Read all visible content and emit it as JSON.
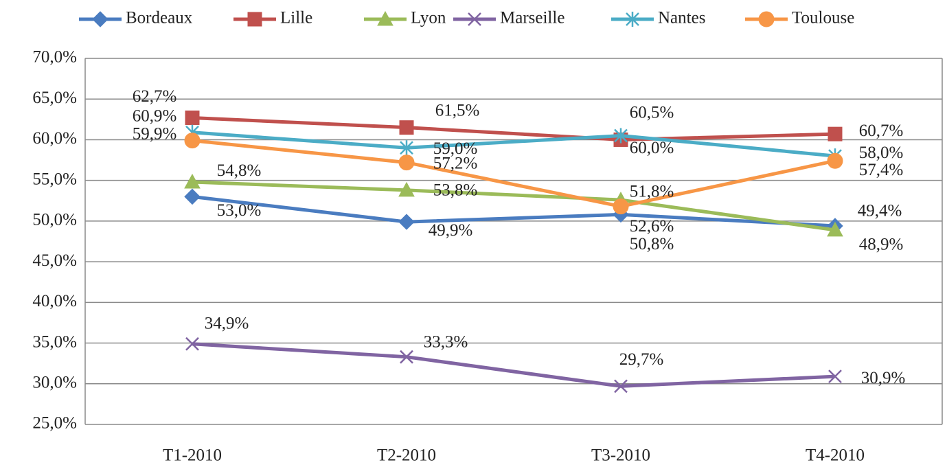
{
  "chart_data": {
    "type": "line",
    "categories": [
      "T1-2010",
      "T2-2010",
      "T3-2010",
      "T4-2010"
    ],
    "ylim": [
      25,
      70
    ],
    "yticks": [
      {
        "value": 25,
        "label": "25,0%"
      },
      {
        "value": 30,
        "label": "30,0%"
      },
      {
        "value": 35,
        "label": "35,0%"
      },
      {
        "value": 40,
        "label": "40,0%"
      },
      {
        "value": 45,
        "label": "45,0%"
      },
      {
        "value": 50,
        "label": "50,0%"
      },
      {
        "value": 55,
        "label": "55,0%"
      },
      {
        "value": 60,
        "label": "60,0%"
      },
      {
        "value": 65,
        "label": "65,0%"
      },
      {
        "value": 70,
        "label": "70,0%"
      }
    ],
    "grid": true,
    "legend": "top",
    "series": [
      {
        "name": "Bordeaux",
        "color": "#4a7cc0",
        "marker": "diamond",
        "values": [
          53.0,
          49.9,
          50.8,
          49.4
        ],
        "value_labels": [
          "53,0%",
          "49,9%",
          "50,8%",
          "49,4%"
        ]
      },
      {
        "name": "Lille",
        "color": "#c0504d",
        "marker": "square",
        "values": [
          62.7,
          61.5,
          60.0,
          60.7
        ],
        "value_labels": [
          "62,7%",
          "61,5%",
          "60,0%",
          "60,7%"
        ]
      },
      {
        "name": "Lyon",
        "color": "#9bbb59",
        "marker": "triangle",
        "values": [
          54.8,
          53.8,
          52.6,
          48.9
        ],
        "value_labels": [
          "54,8%",
          "53,8%",
          "52,6%",
          "48,9%"
        ]
      },
      {
        "name": "Marseille",
        "color": "#8064a2",
        "marker": "x",
        "values": [
          34.9,
          33.3,
          29.7,
          30.9
        ],
        "value_labels": [
          "34,9%",
          "33,3%",
          "29,7%",
          "30,9%"
        ]
      },
      {
        "name": "Nantes",
        "color": "#4bacc6",
        "marker": "asterisk",
        "values": [
          60.9,
          59.0,
          60.5,
          58.0
        ],
        "value_labels": [
          "60,9%",
          "59,0%",
          "60,5%",
          "58,0%"
        ]
      },
      {
        "name": "Toulouse",
        "color": "#f79646",
        "marker": "circle",
        "values": [
          59.9,
          57.2,
          51.8,
          57.4
        ],
        "value_labels": [
          "59,9%",
          "57,2%",
          "51,8%",
          "57,4%"
        ]
      }
    ]
  }
}
